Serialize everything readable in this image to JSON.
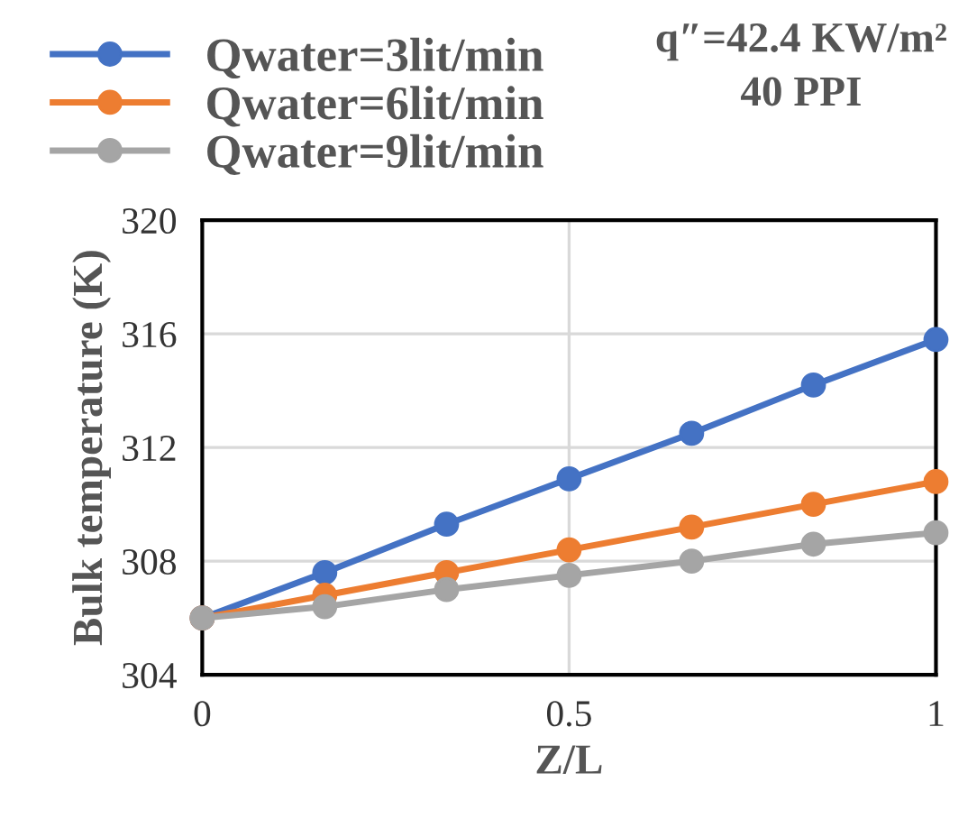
{
  "chart_data": {
    "type": "line",
    "xlabel": "Z/L",
    "ylabel": "Bulk temperature (K)",
    "annotations": [
      "q″=42.4 KW/m²",
      "40 PPI"
    ],
    "x": [
      0,
      0.167,
      0.333,
      0.5,
      0.667,
      0.833,
      1
    ],
    "series": [
      {
        "name": "Qwater=3lit/min",
        "color": "#4472c4",
        "values": [
          306,
          307.6,
          309.3,
          310.9,
          312.5,
          314.2,
          315.8
        ]
      },
      {
        "name": "Qwater=6lit/min",
        "color": "#ed7d31",
        "values": [
          306,
          306.8,
          307.6,
          308.4,
          309.2,
          310.0,
          310.8
        ]
      },
      {
        "name": "Qwater=9lit/min",
        "color": "#a5a5a5",
        "values": [
          306,
          306.4,
          307.0,
          307.5,
          308.0,
          308.6,
          309.0
        ]
      }
    ],
    "xlim": [
      0,
      1
    ],
    "xticks": [
      0,
      0.5,
      1
    ],
    "ylim": [
      304,
      320
    ],
    "yticks": [
      304,
      308,
      312,
      316,
      320
    ],
    "grid": true,
    "legend": "top left",
    "marker": "circle",
    "line_style": "solid"
  }
}
